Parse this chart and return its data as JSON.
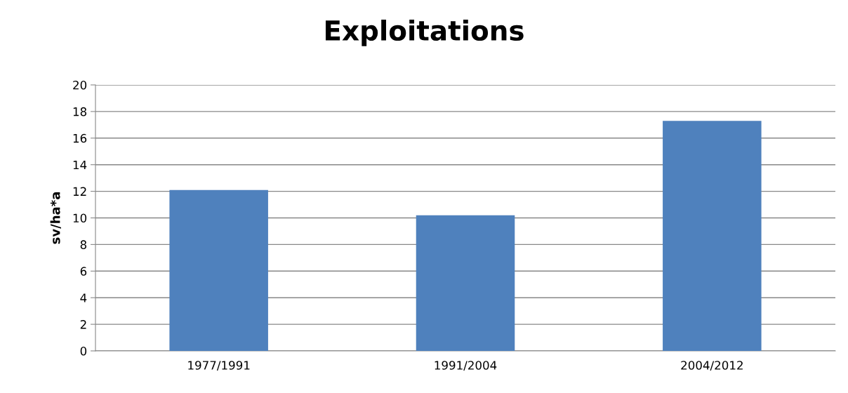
{
  "chart_data": {
    "type": "bar",
    "title": "Exploitations",
    "ylabel": "sv/ha*a",
    "categories": [
      "1977/1991",
      "1991/2004",
      "2004/2012"
    ],
    "values": [
      12.1,
      10.2,
      17.3
    ],
    "color": "#4f81bd",
    "ylim": [
      0,
      20
    ],
    "yticks": [
      0,
      2,
      4,
      6,
      8,
      10,
      12,
      14,
      16,
      18,
      20
    ],
    "grid": "y",
    "legend": false
  }
}
